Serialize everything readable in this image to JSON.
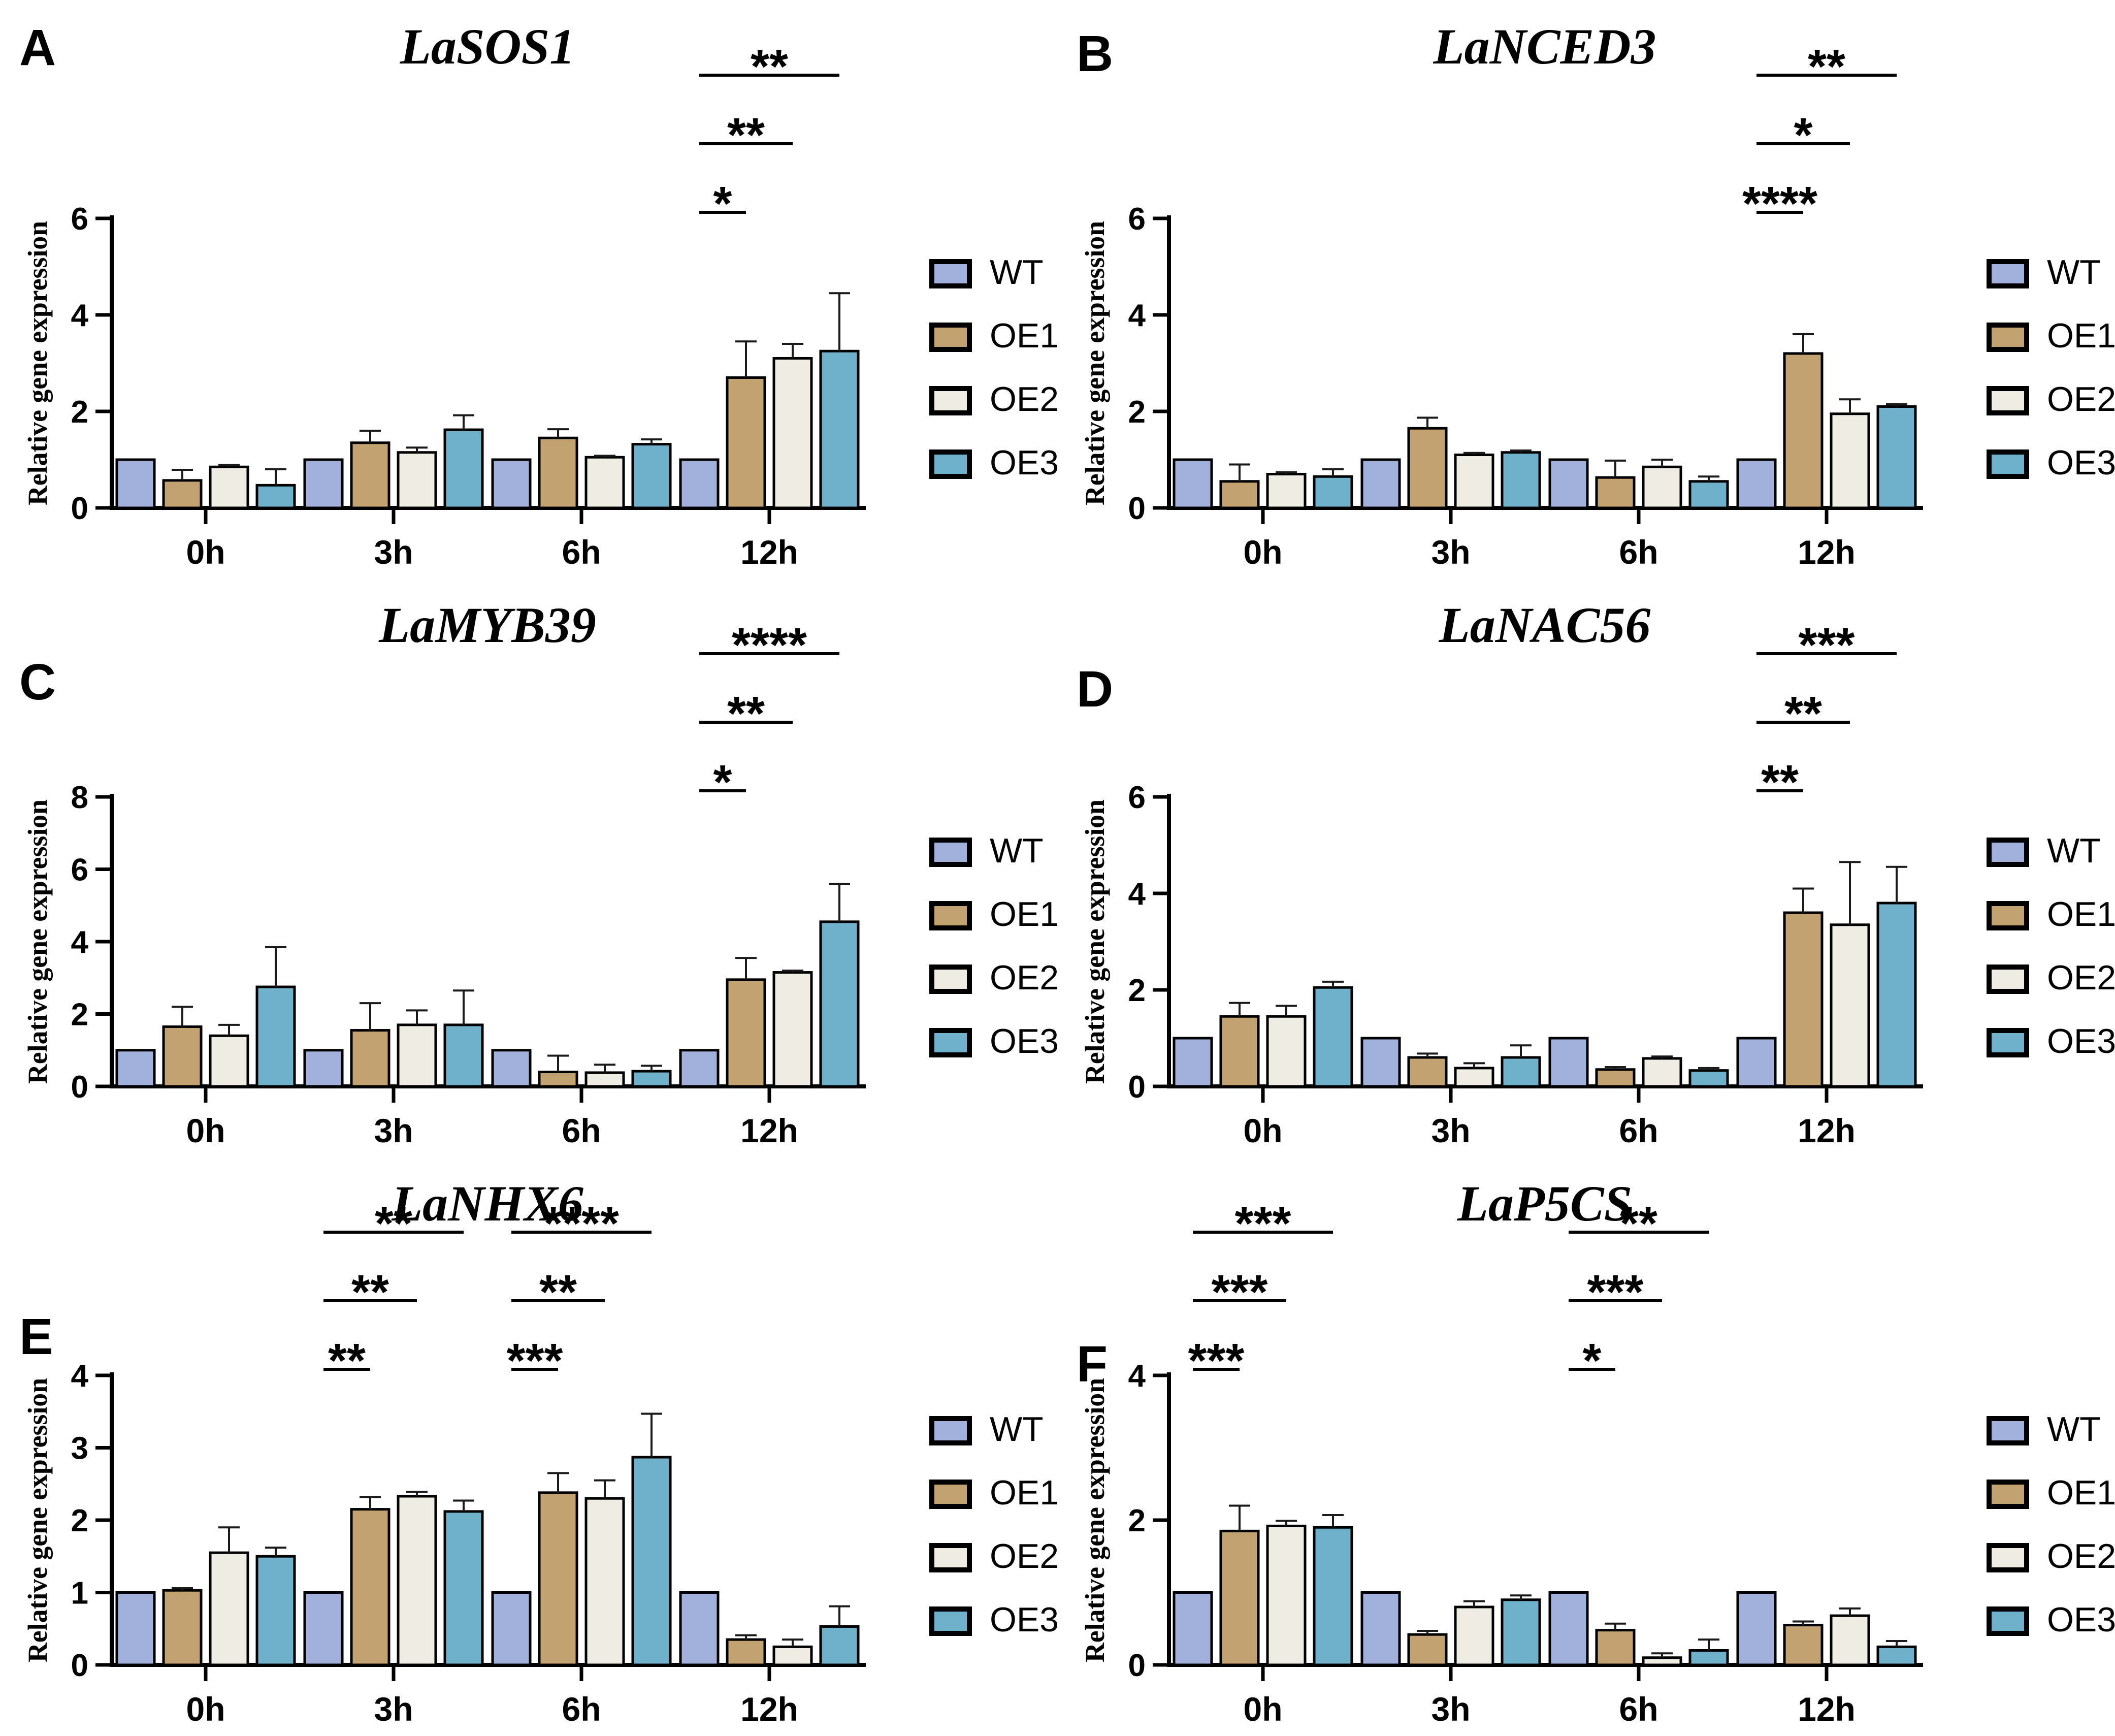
{
  "figure": {
    "ylabel": "Relative gene expression",
    "background": "#ffffff",
    "axis_color": "#000000",
    "error_bar_color": "#1a1a1a",
    "bar_border_color": "#000000",
    "colors": {
      "WT": "#A2B1DB",
      "OE1": "#C2A270",
      "OE2": "#EFECE4",
      "OE3": "#6FB0CB"
    },
    "legend": {
      "position": "right",
      "items": [
        {
          "label": "WT",
          "color": "#A2B1DB"
        },
        {
          "label": "OE1",
          "color": "#C2A270"
        },
        {
          "label": "OE2",
          "color": "#EFECE4"
        },
        {
          "label": "OE3",
          "color": "#6FB0CB"
        }
      ]
    }
  },
  "chart_data": [
    {
      "type": "bar",
      "panel_label": "A",
      "title": "LaSOS1",
      "ylabel": "Relative gene expression",
      "categories": [
        "0h",
        "3h",
        "6h",
        "12h"
      ],
      "ylim": [
        0,
        6
      ],
      "yticks": [
        0,
        2,
        4,
        6
      ],
      "grid": false,
      "legend_position": "right",
      "letter_y": 128,
      "series": [
        {
          "name": "WT",
          "values": [
            1.0,
            1.0,
            1.0,
            1.0
          ],
          "errors": [
            0,
            0,
            0,
            0
          ]
        },
        {
          "name": "OE1",
          "values": [
            0.57,
            1.35,
            1.45,
            2.7
          ],
          "errors": [
            0.22,
            0.25,
            0.18,
            0.75
          ]
        },
        {
          "name": "OE2",
          "values": [
            0.85,
            1.15,
            1.05,
            3.1
          ],
          "errors": [
            0.04,
            0.1,
            0.03,
            0.3
          ]
        },
        {
          "name": "OE3",
          "values": [
            0.47,
            1.62,
            1.32,
            3.25
          ],
          "errors": [
            0.33,
            0.3,
            0.1,
            1.2
          ]
        }
      ],
      "significance": [
        {
          "category": "12h",
          "brackets": [
            {
              "stars": "*",
              "vs": "OE1"
            },
            {
              "stars": "**",
              "vs": "OE2"
            },
            {
              "stars": "**",
              "vs": "OE3"
            }
          ]
        }
      ]
    },
    {
      "type": "bar",
      "panel_label": "B",
      "title": "LaNCED3",
      "ylabel": "Relative gene expression",
      "categories": [
        "0h",
        "3h",
        "6h",
        "12h"
      ],
      "ylim": [
        0,
        6
      ],
      "yticks": [
        0,
        2,
        4,
        6
      ],
      "grid": false,
      "legend_position": "right",
      "letter_y": 140,
      "series": [
        {
          "name": "WT",
          "values": [
            1.0,
            1.0,
            1.0,
            1.0
          ],
          "errors": [
            0,
            0,
            0,
            0
          ]
        },
        {
          "name": "OE1",
          "values": [
            0.55,
            1.65,
            0.63,
            3.2
          ],
          "errors": [
            0.35,
            0.22,
            0.35,
            0.4
          ]
        },
        {
          "name": "OE2",
          "values": [
            0.7,
            1.1,
            0.85,
            1.95
          ],
          "errors": [
            0.04,
            0.04,
            0.15,
            0.3
          ]
        },
        {
          "name": "OE3",
          "values": [
            0.65,
            1.15,
            0.55,
            2.1
          ],
          "errors": [
            0.15,
            0.04,
            0.1,
            0.05
          ]
        }
      ],
      "significance": [
        {
          "category": "12h",
          "brackets": [
            {
              "stars": "****",
              "vs": "OE1"
            },
            {
              "stars": "*",
              "vs": "OE2"
            },
            {
              "stars": "**",
              "vs": "OE3"
            }
          ]
        }
      ]
    },
    {
      "type": "bar",
      "panel_label": "C",
      "title": "LaMYB39",
      "ylabel": "Relative gene expression",
      "categories": [
        "0h",
        "3h",
        "6h",
        "12h"
      ],
      "ylim": [
        0,
        8
      ],
      "yticks": [
        0,
        2,
        4,
        6,
        8
      ],
      "grid": false,
      "legend_position": "right",
      "letter_y": 238,
      "series": [
        {
          "name": "WT",
          "values": [
            1.0,
            1.0,
            1.0,
            1.0
          ],
          "errors": [
            0,
            0,
            0,
            0
          ]
        },
        {
          "name": "OE1",
          "values": [
            1.65,
            1.55,
            0.4,
            2.95
          ],
          "errors": [
            0.55,
            0.75,
            0.45,
            0.6
          ]
        },
        {
          "name": "OE2",
          "values": [
            1.4,
            1.7,
            0.38,
            3.15
          ],
          "errors": [
            0.3,
            0.4,
            0.22,
            0.05
          ]
        },
        {
          "name": "OE3",
          "values": [
            2.75,
            1.7,
            0.42,
            4.55
          ],
          "errors": [
            1.1,
            0.95,
            0.15,
            1.05
          ]
        }
      ],
      "significance": [
        {
          "category": "12h",
          "brackets": [
            {
              "stars": "*",
              "vs": "OE1"
            },
            {
              "stars": "**",
              "vs": "OE2"
            },
            {
              "stars": "****",
              "vs": "OE3"
            }
          ]
        }
      ]
    },
    {
      "type": "bar",
      "panel_label": "D",
      "title": "LaNAC56",
      "ylabel": "Relative gene expression",
      "categories": [
        "0h",
        "3h",
        "6h",
        "12h"
      ],
      "ylim": [
        0,
        6
      ],
      "yticks": [
        0,
        2,
        4,
        6
      ],
      "grid": false,
      "legend_position": "right",
      "letter_y": 252,
      "series": [
        {
          "name": "WT",
          "values": [
            1.0,
            1.0,
            1.0,
            1.0
          ],
          "errors": [
            0,
            0,
            0,
            0
          ]
        },
        {
          "name": "OE1",
          "values": [
            1.45,
            0.6,
            0.35,
            3.6
          ],
          "errors": [
            0.28,
            0.08,
            0.05,
            0.5
          ]
        },
        {
          "name": "OE2",
          "values": [
            1.45,
            0.38,
            0.58,
            3.35
          ],
          "errors": [
            0.22,
            0.1,
            0.04,
            1.3
          ]
        },
        {
          "name": "OE3",
          "values": [
            2.05,
            0.6,
            0.33,
            3.8
          ],
          "errors": [
            0.12,
            0.25,
            0.05,
            0.75
          ]
        }
      ],
      "significance": [
        {
          "category": "12h",
          "brackets": [
            {
              "stars": "**",
              "vs": "OE1"
            },
            {
              "stars": "**",
              "vs": "OE2"
            },
            {
              "stars": "***",
              "vs": "OE3"
            }
          ]
        }
      ]
    },
    {
      "type": "bar",
      "panel_label": "E",
      "title": "LaNHX6",
      "ylabel": "Relative gene expression",
      "categories": [
        "0h",
        "3h",
        "6h",
        "12h"
      ],
      "ylim": [
        0,
        4
      ],
      "yticks": [
        0,
        1,
        2,
        3,
        4
      ],
      "grid": false,
      "legend_position": "right",
      "letter_y": 388,
      "series": [
        {
          "name": "WT",
          "values": [
            1.0,
            1.0,
            1.0,
            1.0
          ],
          "errors": [
            0,
            0,
            0,
            0
          ]
        },
        {
          "name": "OE1",
          "values": [
            1.03,
            2.15,
            2.38,
            0.35
          ],
          "errors": [
            0.03,
            0.17,
            0.27,
            0.06
          ]
        },
        {
          "name": "OE2",
          "values": [
            1.55,
            2.33,
            2.3,
            0.25
          ],
          "errors": [
            0.35,
            0.06,
            0.25,
            0.1
          ]
        },
        {
          "name": "OE3",
          "values": [
            1.5,
            2.12,
            2.87,
            0.53
          ],
          "errors": [
            0.12,
            0.15,
            0.6,
            0.28
          ]
        }
      ],
      "significance": [
        {
          "category": "3h",
          "brackets": [
            {
              "stars": "**",
              "vs": "OE1"
            },
            {
              "stars": "**",
              "vs": "OE2"
            },
            {
              "stars": "**",
              "vs": "OE3"
            }
          ]
        },
        {
          "category": "6h",
          "brackets": [
            {
              "stars": "***",
              "vs": "OE1"
            },
            {
              "stars": "**",
              "vs": "OE2"
            },
            {
              "stars": "****",
              "vs": "OE3"
            }
          ]
        }
      ]
    },
    {
      "type": "bar",
      "panel_label": "F",
      "title": "LaP5CS",
      "ylabel": "Relative gene expression",
      "categories": [
        "0h",
        "3h",
        "6h",
        "12h"
      ],
      "ylim": [
        0,
        4
      ],
      "yticks": [
        0,
        2,
        4
      ],
      "grid": false,
      "legend_position": "right",
      "letter_y": 442,
      "series": [
        {
          "name": "WT",
          "values": [
            1.0,
            1.0,
            1.0,
            1.0
          ],
          "errors": [
            0,
            0,
            0,
            0
          ]
        },
        {
          "name": "OE1",
          "values": [
            1.85,
            0.42,
            0.48,
            0.55
          ],
          "errors": [
            0.35,
            0.05,
            0.09,
            0.05
          ]
        },
        {
          "name": "OE2",
          "values": [
            1.92,
            0.8,
            0.1,
            0.68
          ],
          "errors": [
            0.07,
            0.08,
            0.06,
            0.1
          ]
        },
        {
          "name": "OE3",
          "values": [
            1.9,
            0.9,
            0.2,
            0.25
          ],
          "errors": [
            0.17,
            0.06,
            0.15,
            0.08
          ]
        }
      ],
      "significance": [
        {
          "category": "0h",
          "brackets": [
            {
              "stars": "***",
              "vs": "OE1"
            },
            {
              "stars": "***",
              "vs": "OE2"
            },
            {
              "stars": "***",
              "vs": "OE3"
            }
          ]
        },
        {
          "category": "6h",
          "brackets": [
            {
              "stars": "*",
              "vs": "OE1"
            },
            {
              "stars": "***",
              "vs": "OE2"
            },
            {
              "stars": "**",
              "vs": "OE3"
            }
          ]
        }
      ]
    }
  ]
}
